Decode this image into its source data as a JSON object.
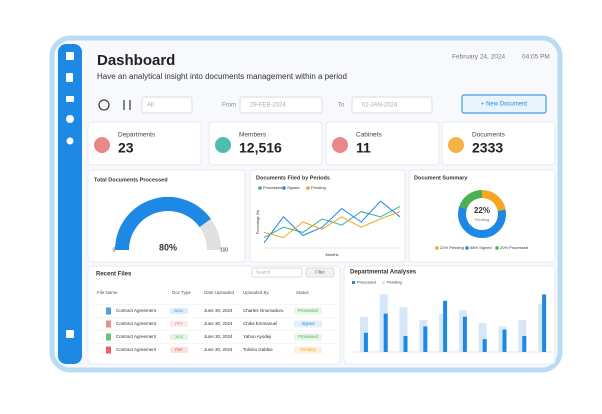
{
  "header": {
    "title": "Dashboard",
    "subtitle": "Have an analytical insight  into documents management within a period",
    "date": "February 24, 2024",
    "time": "04:05 PM"
  },
  "filters": {
    "select": "All",
    "from_label": "From",
    "from": "29-FEB-2024",
    "to_label": "To",
    "to": "01-JAN-2024",
    "button": "+ New Document"
  },
  "stats": [
    {
      "label": "Departments",
      "value": "23"
    },
    {
      "label": "Members",
      "value": "12,516"
    },
    {
      "label": "Cabinets",
      "value": "11"
    },
    {
      "label": "Documents",
      "value": "2333"
    }
  ],
  "gauge": {
    "title": "Total Documents Processed",
    "value": 80,
    "value_label": "80%",
    "min": 0,
    "max": 100,
    "color": "#1e88e5"
  },
  "line_chart": {
    "title": "Documents Filed by Periods",
    "x_label": "Months",
    "y_label": "Percentage (%)",
    "ylim": [
      0,
      50
    ],
    "series": [
      {
        "name": "Processed",
        "color": "#2bb3a3",
        "values": [
          10,
          20,
          15,
          28,
          22,
          35,
          30,
          40
        ]
      },
      {
        "name": "Signed",
        "color": "#1e88e5",
        "values": [
          5,
          30,
          12,
          20,
          38,
          25,
          45,
          30
        ]
      },
      {
        "name": "Pending",
        "color": "#f5a623",
        "values": [
          15,
          10,
          25,
          18,
          30,
          20,
          28,
          35
        ]
      }
    ]
  },
  "donut": {
    "title": "Document Summary",
    "center_label": "22%",
    "center_sub": "Pending",
    "segments": [
      {
        "name": "22% Pending",
        "value": 22,
        "color": "#f5a623"
      },
      {
        "name": "58% Signed",
        "value": 58,
        "color": "#1e88e5"
      },
      {
        "name": "20% Processed",
        "value": 20,
        "color": "#4caf50"
      }
    ]
  },
  "files": {
    "title": "Recent Files",
    "search": "Search",
    "filter": "Filter",
    "columns": [
      "File Name",
      "Doc Type",
      "Date Uploaded",
      "Uploaded By",
      "Status"
    ],
    "rows": [
      [
        "Contract Agreement",
        "DOC",
        "June 30, 2024",
        "Charles Onumaduru",
        "Processed"
      ],
      [
        "Contract Agreement",
        "PPT",
        "June 30, 2024",
        "Chika Emmanuel",
        "Signed"
      ],
      [
        "Contract Agreement",
        "XLS",
        "June 30, 2024",
        "Yahoo Ayodeji",
        "Processed"
      ],
      [
        "Contract Agreement",
        "PDF",
        "June 30, 2024",
        "Tolvinu Gabbie",
        "Pending"
      ]
    ]
  },
  "bar_chart": {
    "title": "Departmental Analyses",
    "ylim": [
      0,
      100
    ],
    "series": [
      {
        "name": "Processed",
        "color": "#1e88e5",
        "values": [
          30,
          60,
          25,
          40,
          80,
          55,
          20,
          35,
          25,
          90
        ]
      },
      {
        "name": "Pending",
        "color": "#d6e8f8",
        "values": [
          55,
          90,
          70,
          50,
          60,
          65,
          45,
          40,
          50,
          75
        ]
      }
    ]
  }
}
